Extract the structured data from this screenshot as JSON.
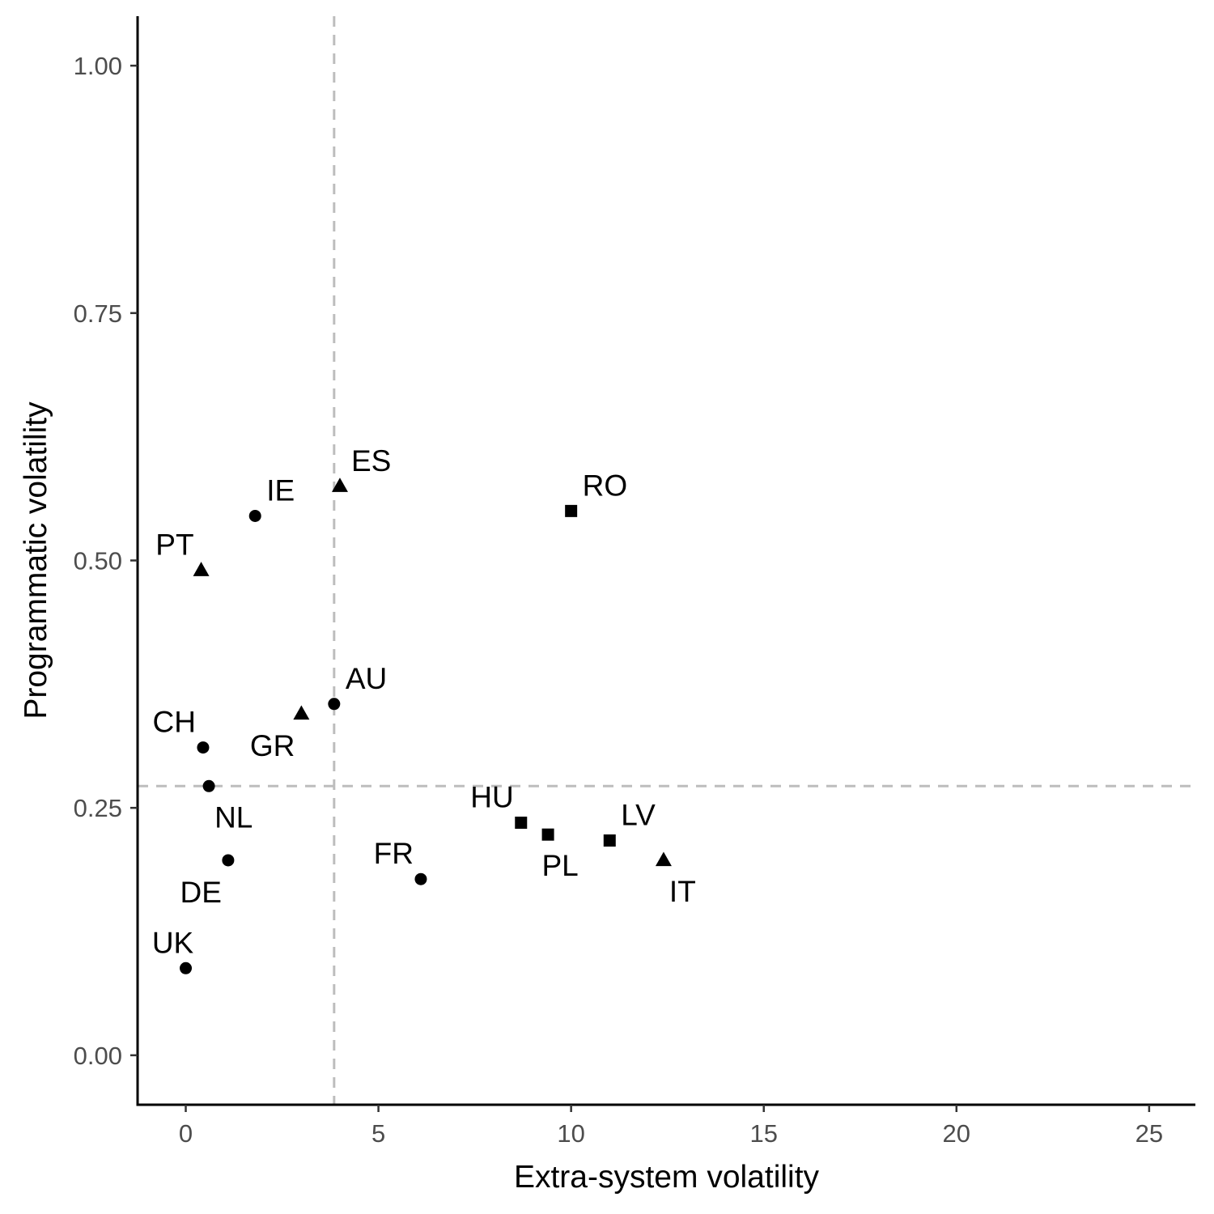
{
  "chart_data": {
    "type": "scatter",
    "xlabel": "Extra-system volatility",
    "ylabel": "Programmatic volatility",
    "xlim": [
      -1.25,
      26.2
    ],
    "ylim": [
      -0.05,
      1.05
    ],
    "x_ticks": [
      0,
      5,
      10,
      15,
      20,
      25
    ],
    "x_tick_labels": [
      "0",
      "5",
      "10",
      "15",
      "20",
      "25"
    ],
    "y_ticks": [
      0,
      0.25,
      0.5,
      0.75,
      1.0
    ],
    "y_tick_labels": [
      "0.00",
      "0.25",
      "0.50",
      "0.75",
      "1.00"
    ],
    "reference_lines": {
      "x": 3.85,
      "y": 0.272,
      "style": "dashed",
      "color": "#bdbdbd"
    },
    "grid": false,
    "point_color": "#000000",
    "points": [
      {
        "label": "IE",
        "x": 1.8,
        "y": 0.545,
        "shape": "circle",
        "label_pos": "top-right"
      },
      {
        "label": "ES",
        "x": 4.0,
        "y": 0.575,
        "shape": "triangle",
        "label_pos": "top-right"
      },
      {
        "label": "RO",
        "x": 10.0,
        "y": 0.55,
        "shape": "square",
        "label_pos": "top-right"
      },
      {
        "label": "PT",
        "x": 0.4,
        "y": 0.49,
        "shape": "triangle",
        "label_pos": "top-left"
      },
      {
        "label": "AU",
        "x": 3.85,
        "y": 0.355,
        "shape": "circle",
        "label_pos": "top-right"
      },
      {
        "label": "GR",
        "x": 3.0,
        "y": 0.345,
        "shape": "triangle",
        "label_pos": "bottom-left"
      },
      {
        "label": "CH",
        "x": 0.45,
        "y": 0.311,
        "shape": "circle",
        "label_pos": "top-left"
      },
      {
        "label": "NL",
        "x": 0.6,
        "y": 0.272,
        "shape": "circle",
        "label_pos": "bottom-right"
      },
      {
        "label": "HU",
        "x": 8.7,
        "y": 0.235,
        "shape": "square",
        "label_pos": "top-left"
      },
      {
        "label": "PL",
        "x": 9.4,
        "y": 0.223,
        "shape": "square",
        "label_pos": "bottom"
      },
      {
        "label": "LV",
        "x": 11.0,
        "y": 0.217,
        "shape": "square",
        "label_pos": "top-right"
      },
      {
        "label": "IT",
        "x": 12.4,
        "y": 0.197,
        "shape": "triangle",
        "label_pos": "bottom-right"
      },
      {
        "label": "DE",
        "x": 1.1,
        "y": 0.197,
        "shape": "circle",
        "label_pos": "bottom-left"
      },
      {
        "label": "FR",
        "x": 6.1,
        "y": 0.178,
        "shape": "circle",
        "label_pos": "top-left"
      },
      {
        "label": "UK",
        "x": 0.0,
        "y": 0.088,
        "shape": "circle",
        "label_pos": "top"
      }
    ]
  }
}
